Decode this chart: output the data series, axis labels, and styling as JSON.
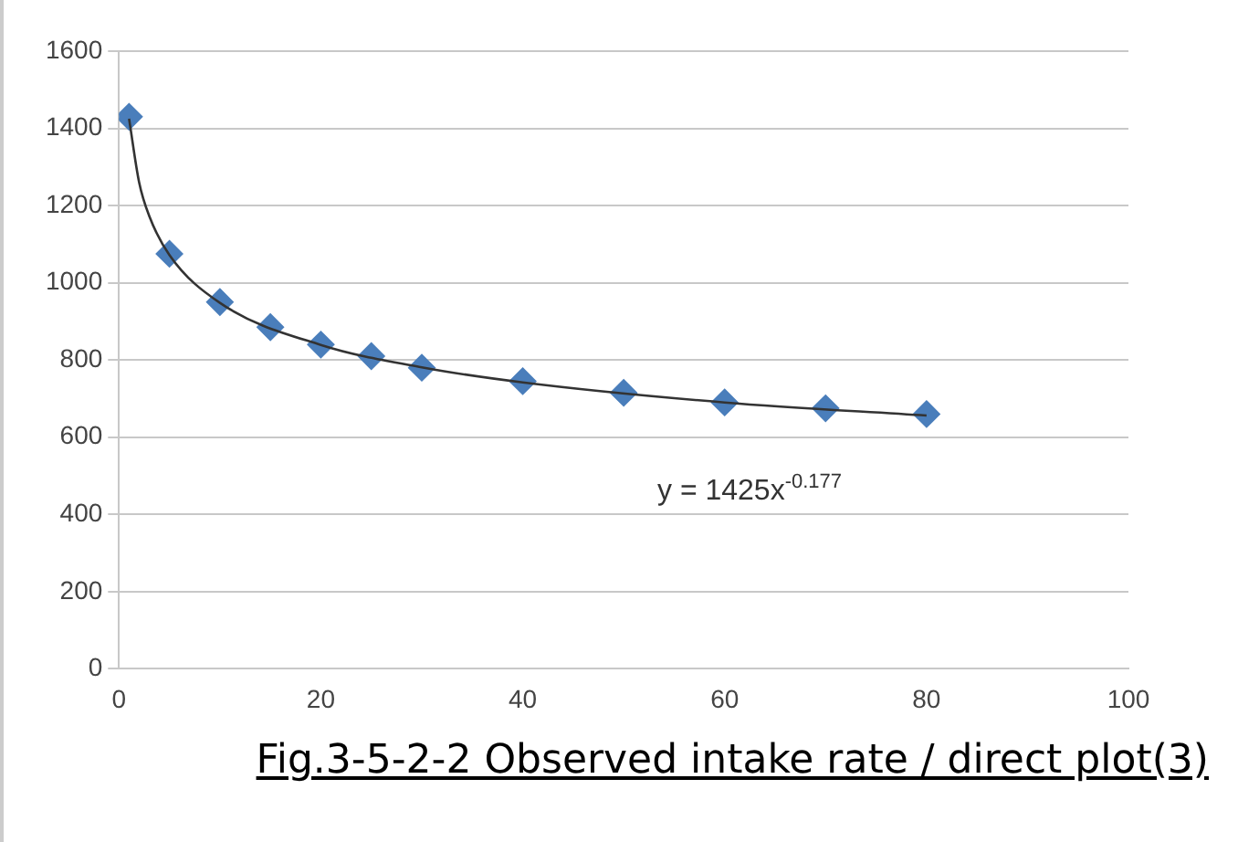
{
  "chart_data": {
    "type": "scatter",
    "xlim": [
      0,
      100
    ],
    "xticks": [
      0,
      20,
      40,
      60,
      80,
      100
    ],
    "ylim": [
      0,
      1600
    ],
    "yticks": [
      0,
      200,
      400,
      600,
      800,
      1000,
      1200,
      1400,
      1600
    ],
    "grid": "y",
    "legend": false,
    "marker": "diamond",
    "series": [
      {
        "color": "#4a7ebb",
        "x": [
          1,
          5,
          10,
          15,
          20,
          25,
          30,
          40,
          50,
          60,
          70,
          80
        ],
        "values": [
          1430,
          1075,
          950,
          885,
          840,
          810,
          780,
          745,
          715,
          690,
          675,
          660
        ]
      },
      {
        "type": "line",
        "color": "#333333",
        "marker": "none",
        "x": [
          1,
          2,
          3,
          5,
          10,
          20,
          30,
          40,
          60,
          80
        ],
        "values": [
          1425,
          1260,
          1173,
          1072,
          948,
          839,
          781,
          742,
          690,
          656
        ]
      }
    ],
    "annotations": [
      "y = 1425x$^{-0.177}$",
      "Fig.3-5-2-2 Observed intake rate / direct plot(3)"
    ]
  }
}
